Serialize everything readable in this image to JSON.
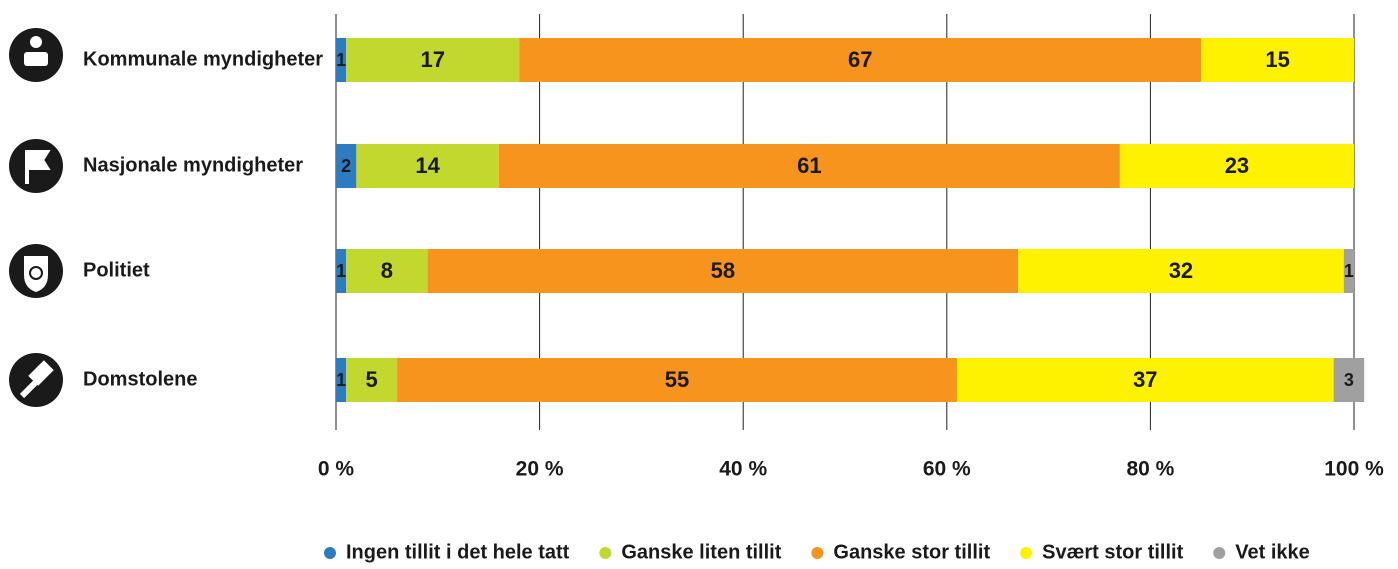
{
  "chart_data": {
    "type": "stacked_bar_horizontal",
    "categories": [
      "Kommunale myndigheter",
      "Nasjonale myndigheter",
      "Politiet",
      "Domstolene"
    ],
    "series": [
      {
        "name": "Ingen tillit i det hele tatt",
        "color": "#2d7cc1",
        "values": [
          1,
          2,
          1,
          1
        ]
      },
      {
        "name": "Ganske liten tillit",
        "color": "#c3d82e",
        "values": [
          17,
          14,
          8,
          5
        ]
      },
      {
        "name": "Ganske stor tillit",
        "color": "#f7941d",
        "values": [
          67,
          61,
          58,
          55
        ]
      },
      {
        "name": "Svært stor tillit",
        "color": "#fff200",
        "values": [
          15,
          23,
          32,
          37
        ]
      },
      {
        "name": "Vet ikke",
        "color": "#a0a0a0",
        "values": [
          null,
          null,
          1,
          3
        ]
      }
    ],
    "xlim": [
      0,
      100
    ],
    "xticks": [
      {
        "value": 0,
        "label": "0 %"
      },
      {
        "value": 20,
        "label": "20 %"
      },
      {
        "value": 40,
        "label": "40 %"
      },
      {
        "value": 60,
        "label": "60 %"
      },
      {
        "value": 80,
        "label": "80 %"
      },
      {
        "value": 100,
        "label": "100 %"
      }
    ],
    "grid": true,
    "legend": "bottom"
  }
}
